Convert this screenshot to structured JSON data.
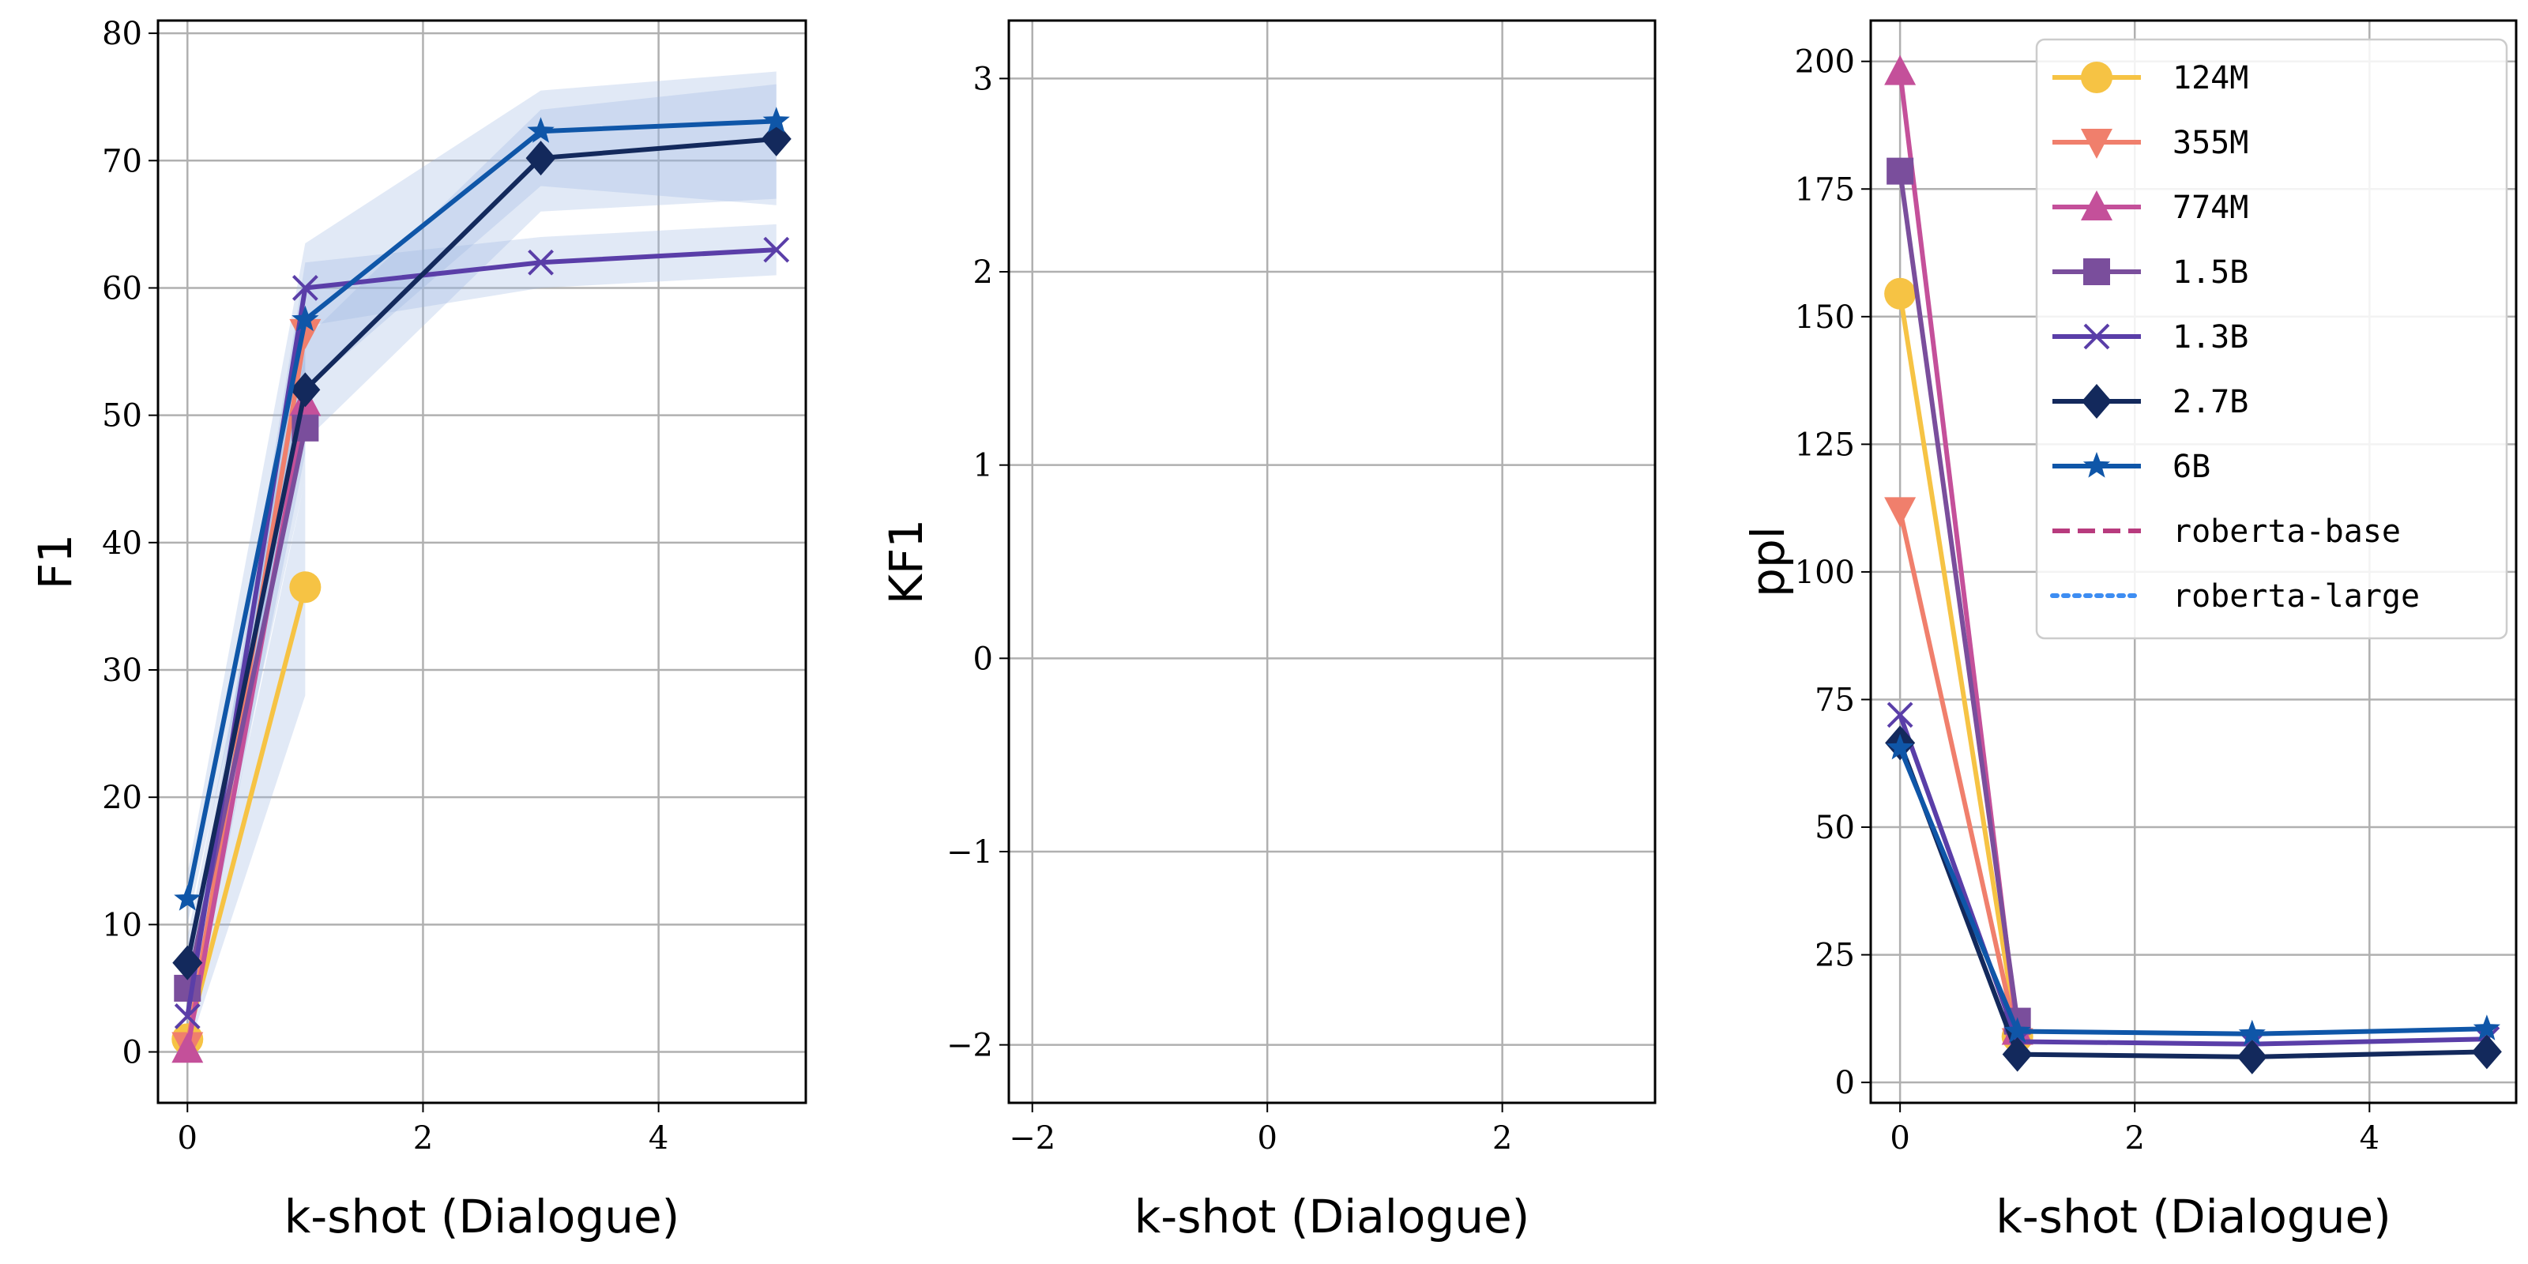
{
  "chart_data": [
    {
      "type": "line",
      "title": "",
      "xlabel": "k-shot (Dialogue)",
      "ylabel": "F1",
      "xlim": [
        -0.25,
        5.25
      ],
      "ylim": [
        -4,
        81
      ],
      "xticks": [
        0,
        2,
        4
      ],
      "yticks": [
        0,
        10,
        20,
        30,
        40,
        50,
        60,
        70,
        80
      ],
      "grid": true,
      "series": [
        {
          "name": "124M",
          "x": [
            0,
            1
          ],
          "values": [
            1,
            36.5
          ],
          "band": [
            [
              0,
              2
            ],
            [
              28,
              45
            ]
          ]
        },
        {
          "name": "355M",
          "x": [
            0,
            1
          ],
          "values": [
            0.5,
            56.5
          ],
          "band": [
            [
              0,
              1.5
            ],
            [
              52,
              60
            ]
          ]
        },
        {
          "name": "774M",
          "x": [
            0,
            1
          ],
          "values": [
            0.2,
            51
          ],
          "band": [
            [
              0,
              1
            ],
            [
              47,
              55
            ]
          ]
        },
        {
          "name": "1.5B",
          "x": [
            0,
            1
          ],
          "values": [
            5,
            49
          ],
          "band": [
            [
              3,
              7
            ],
            [
              45,
              53
            ]
          ]
        },
        {
          "name": "1.3B",
          "x": [
            0,
            1,
            3,
            5
          ],
          "values": [
            2.8,
            60,
            62,
            63
          ],
          "band": [
            [
              1,
              5
            ],
            [
              57,
              62
            ],
            [
              60,
              64
            ],
            [
              61,
              65
            ]
          ]
        },
        {
          "name": "2.7B",
          "x": [
            0,
            1,
            3,
            5
          ],
          "values": [
            7,
            52,
            70.2,
            71.7
          ],
          "band": [
            [
              5,
              9
            ],
            [
              48,
              56
            ],
            [
              66,
              74
            ],
            [
              67,
              76
            ]
          ]
        },
        {
          "name": "6B",
          "x": [
            0,
            1,
            3,
            5
          ],
          "values": [
            12,
            57.5,
            72.3,
            73.1
          ],
          "band": [
            [
              10,
              14
            ],
            [
              52,
              63.5
            ],
            [
              68,
              75.5
            ],
            [
              66.5,
              77
            ]
          ]
        }
      ]
    },
    {
      "type": "line",
      "title": "",
      "xlabel": "k-shot (Dialogue)",
      "ylabel": "KF1",
      "xlim": [
        -2.2,
        3.3
      ],
      "ylim": [
        -2.3,
        3.3
      ],
      "xticks": [
        -2,
        0,
        2
      ],
      "yticks": [
        -2,
        -1,
        0,
        1,
        2,
        3
      ],
      "grid": true,
      "series": []
    },
    {
      "type": "line",
      "title": "",
      "xlabel": "k-shot (Dialogue)",
      "ylabel": "ppl",
      "xlim": [
        -0.25,
        5.25
      ],
      "ylim": [
        -4,
        208
      ],
      "xticks": [
        0,
        2,
        4
      ],
      "yticks": [
        0,
        25,
        50,
        75,
        100,
        125,
        150,
        175,
        200
      ],
      "grid": true,
      "series": [
        {
          "name": "124M",
          "x": [
            0,
            1
          ],
          "values": [
            154.5,
            9
          ]
        },
        {
          "name": "355M",
          "x": [
            0,
            1
          ],
          "values": [
            112,
            8
          ]
        },
        {
          "name": "774M",
          "x": [
            0,
            1
          ],
          "values": [
            198,
            10
          ]
        },
        {
          "name": "1.5B",
          "x": [
            0,
            1
          ],
          "values": [
            178.5,
            12
          ]
        },
        {
          "name": "1.3B",
          "x": [
            0,
            1,
            3,
            5
          ],
          "values": [
            72,
            8,
            7.5,
            8.5
          ]
        },
        {
          "name": "2.7B",
          "x": [
            0,
            1,
            3,
            5
          ],
          "values": [
            66.5,
            5.5,
            5,
            6
          ]
        },
        {
          "name": "6B",
          "x": [
            0,
            1,
            3,
            5
          ],
          "values": [
            65.5,
            10,
            9.5,
            10.5
          ]
        }
      ]
    }
  ],
  "legend": {
    "placement": "upper-right of third panel",
    "entries": [
      {
        "label": "124M",
        "color": "#F6C344",
        "marker": "circle",
        "line": "solid"
      },
      {
        "label": "355M",
        "color": "#F07F6C",
        "marker": "triangle-down",
        "line": "solid"
      },
      {
        "label": "774M",
        "color": "#C4509A",
        "marker": "triangle-up",
        "line": "solid"
      },
      {
        "label": "1.5B",
        "color": "#7A4E9C",
        "marker": "square",
        "line": "solid"
      },
      {
        "label": "1.3B",
        "color": "#5A3EA8",
        "marker": "x",
        "line": "solid"
      },
      {
        "label": "2.7B",
        "color": "#13295C",
        "marker": "diamond",
        "line": "solid"
      },
      {
        "label": "6B",
        "color": "#0F56A8",
        "marker": "star",
        "line": "solid"
      },
      {
        "label": "roberta-base",
        "color": "#B83B7E",
        "marker": "none",
        "line": "dashed"
      },
      {
        "label": "roberta-large",
        "color": "#3D8DF2",
        "marker": "none",
        "line": "dotted"
      }
    ]
  },
  "band_color": "#9DB6E0"
}
